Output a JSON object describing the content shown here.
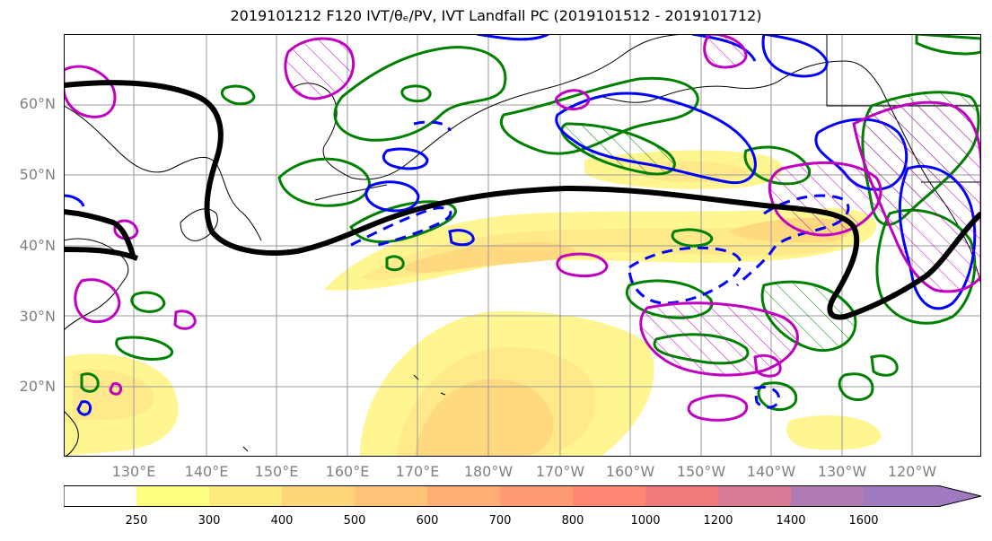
{
  "title": "2019101212 F120 IVT/θₑ/PV, IVT Landfall PC (2019101512 - 2019101712)",
  "lat_labels": [
    "60°N",
    "50°N",
    "40°N",
    "30°N",
    "20°N"
  ],
  "lon_labels": [
    "130°E",
    "140°E",
    "150°E",
    "160°E",
    "170°E",
    "180°W",
    "170°W",
    "160°W",
    "150°W",
    "140°W",
    "130°W",
    "120°W"
  ],
  "colorbar": {
    "labels": [
      "250",
      "300",
      "400",
      "500",
      "600",
      "700",
      "800",
      "1000",
      "1200",
      "1400",
      "1600"
    ],
    "colors": [
      "#ffffff",
      "#ffff80",
      "#ffeb7d",
      "#ffd77a",
      "#ffc378",
      "#ffaf76",
      "#ff9b74",
      "#ff8773",
      "#f07a7a",
      "#d97a95",
      "#b07ab5",
      "#a07ac0"
    ]
  },
  "colors": {
    "ivt_fill_light": "#fff591",
    "ivt_fill_mid": "#ffd97f",
    "ivt_fill_dark": "#ffc878",
    "theta_e_contour": "#008000",
    "pv_contour": "#0000ff",
    "landfall_pc": "#c000c0",
    "jet_line": "#000000"
  }
}
